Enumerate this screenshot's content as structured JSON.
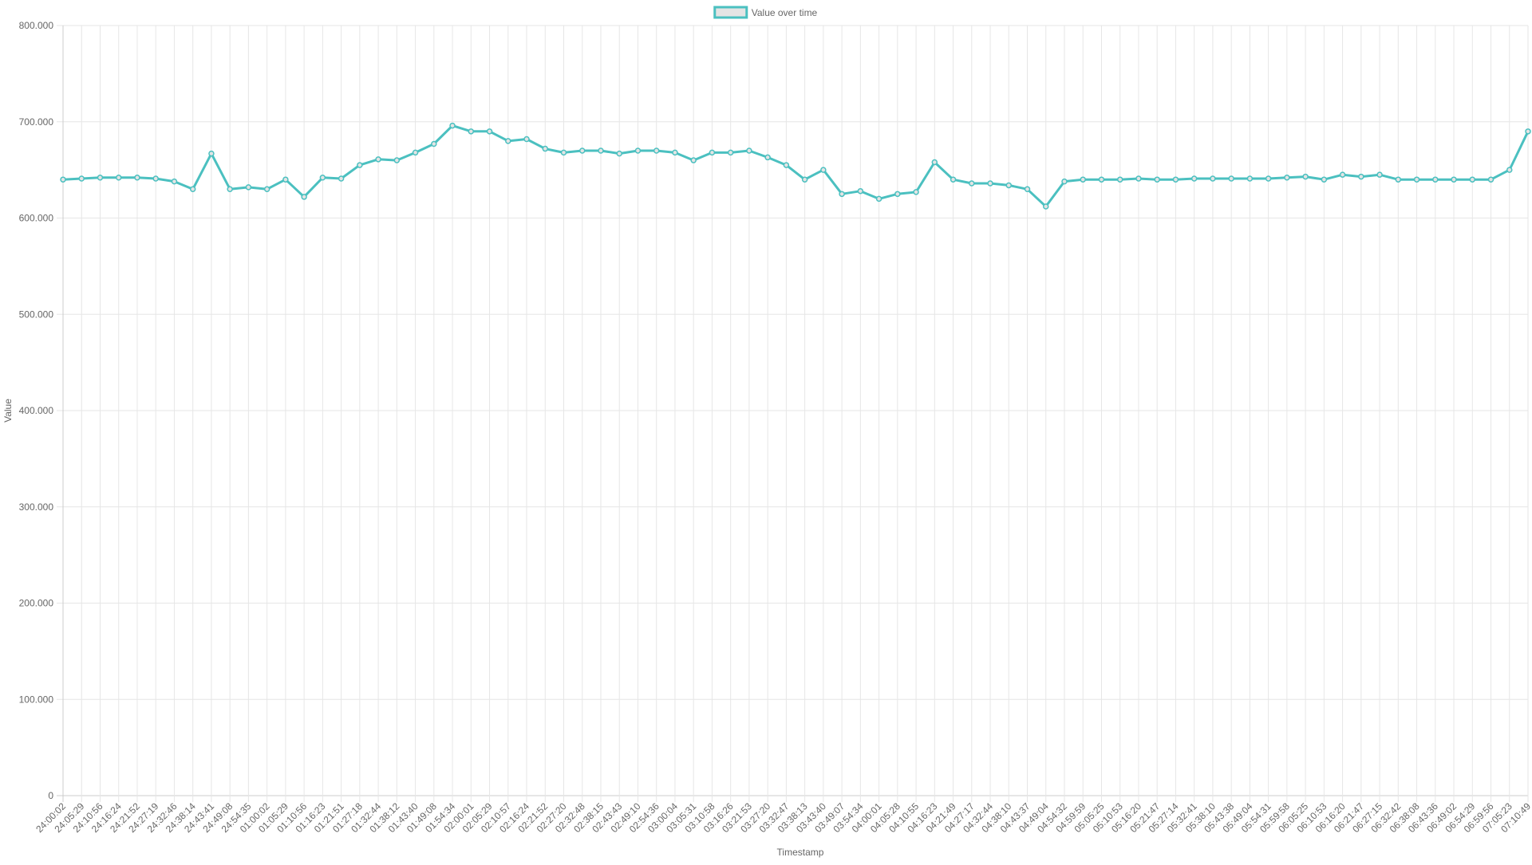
{
  "chart_data": {
    "type": "line",
    "legend_position": "top-center",
    "grid": true,
    "xlabel": "Timestamp",
    "ylabel": "Value",
    "ylim": [
      0,
      800
    ],
    "yticks": [
      "0",
      "100.000",
      "200.000",
      "300.000",
      "400.000",
      "500.000",
      "600.000",
      "700.000",
      "800.000"
    ],
    "categories": [
      "24:00:02",
      "24:05:29",
      "24:10:56",
      "24:16:24",
      "24:21:52",
      "24:27:19",
      "24:32:46",
      "24:38:14",
      "24:43:41",
      "24:49:08",
      "24:54:35",
      "01:00:02",
      "01:05:29",
      "01:10:56",
      "01:16:23",
      "01:21:51",
      "01:27:18",
      "01:32:44",
      "01:38:12",
      "01:43:40",
      "01:49:08",
      "01:54:34",
      "02:00:01",
      "02:05:29",
      "02:10:57",
      "02:16:24",
      "02:21:52",
      "02:27:20",
      "02:32:48",
      "02:38:15",
      "02:43:43",
      "02:49:10",
      "02:54:36",
      "03:00:04",
      "03:05:31",
      "03:10:58",
      "03:16:26",
      "03:21:53",
      "03:27:20",
      "03:32:47",
      "03:38:13",
      "03:43:40",
      "03:49:07",
      "03:54:34",
      "04:00:01",
      "04:05:28",
      "04:10:55",
      "04:16:23",
      "04:21:49",
      "04:27:17",
      "04:32:44",
      "04:38:10",
      "04:43:37",
      "04:49:04",
      "04:54:32",
      "04:59:59",
      "05:05:25",
      "05:10:53",
      "05:16:20",
      "05:21:47",
      "05:27:14",
      "05:32:41",
      "05:38:10",
      "05:43:38",
      "05:49:04",
      "05:54:31",
      "05:59:58",
      "06:05:25",
      "06:10:53",
      "06:16:20",
      "06:21:47",
      "06:27:15",
      "06:32:42",
      "06:38:08",
      "06:43:36",
      "06:49:02",
      "06:54:29",
      "06:59:56",
      "07:05:23",
      "07:10:49"
    ],
    "series": [
      {
        "name": "Value over time",
        "color": "#4bc0c0",
        "fill": "#e4e4e4",
        "values": [
          640,
          641,
          642,
          642,
          642,
          641,
          638,
          630,
          667,
          630,
          632,
          630,
          640,
          622,
          642,
          641,
          655,
          661,
          660,
          668,
          677,
          696,
          690,
          690,
          680,
          682,
          672,
          668,
          670,
          670,
          667,
          670,
          670,
          668,
          660,
          668,
          668,
          670,
          663,
          655,
          640,
          650,
          625,
          628,
          620,
          625,
          627,
          658,
          640,
          636,
          636,
          634,
          630,
          612,
          638,
          640,
          640,
          640,
          641,
          640,
          640,
          641,
          641,
          641,
          641,
          641,
          642,
          643,
          640,
          645,
          643,
          645,
          640,
          640,
          640,
          640,
          640,
          640,
          650,
          690
        ]
      }
    ]
  }
}
